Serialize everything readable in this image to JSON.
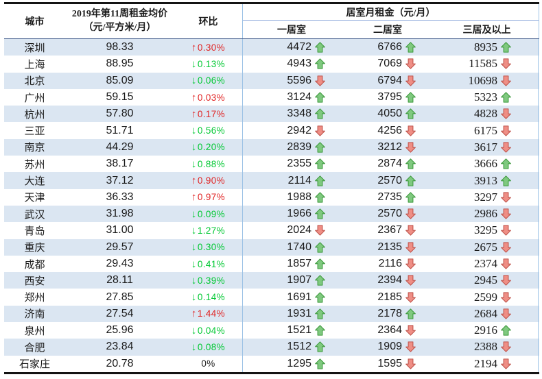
{
  "chart_data": {
    "type": "table",
    "title_note": "weekly city rent averages with week-over-week change and monthly rents by bedroom count",
    "columns": {
      "city": "城市",
      "avg_price_line1": "2019年第11周租金均价",
      "avg_price_line2": "（元/平方米/月）",
      "wow": "环比",
      "room_rent_group": "居室月租金（元/月）",
      "one_bed": "一居室",
      "two_bed": "二居室",
      "three_bed": "三居及以上"
    },
    "rows": [
      {
        "city": "深圳",
        "price": "98.33",
        "wow_pct": "0.30%",
        "wow_dir": "up",
        "one_bed": "4472",
        "one_dir": "up",
        "two_bed": "6766",
        "two_dir": "up",
        "three_bed": "8935",
        "three_dir": "up"
      },
      {
        "city": "上海",
        "price": "88.95",
        "wow_pct": "0.13%",
        "wow_dir": "down",
        "one_bed": "4943",
        "one_dir": "up",
        "two_bed": "7069",
        "two_dir": "down",
        "three_bed": "11585",
        "three_dir": "down"
      },
      {
        "city": "北京",
        "price": "85.09",
        "wow_pct": "0.06%",
        "wow_dir": "down",
        "one_bed": "5596",
        "one_dir": "down",
        "two_bed": "6794",
        "two_dir": "down",
        "three_bed": "10698",
        "three_dir": "down"
      },
      {
        "city": "广州",
        "price": "59.15",
        "wow_pct": "0.03%",
        "wow_dir": "up",
        "one_bed": "3124",
        "one_dir": "up",
        "two_bed": "3795",
        "two_dir": "up",
        "three_bed": "5323",
        "three_dir": "up"
      },
      {
        "city": "杭州",
        "price": "57.80",
        "wow_pct": "0.17%",
        "wow_dir": "up",
        "one_bed": "3348",
        "one_dir": "up",
        "two_bed": "4050",
        "two_dir": "up",
        "three_bed": "4828",
        "three_dir": "down"
      },
      {
        "city": "三亚",
        "price": "51.71",
        "wow_pct": "0.56%",
        "wow_dir": "down",
        "one_bed": "2942",
        "one_dir": "down",
        "two_bed": "4256",
        "two_dir": "down",
        "three_bed": "6175",
        "three_dir": "down"
      },
      {
        "city": "南京",
        "price": "44.29",
        "wow_pct": "0.20%",
        "wow_dir": "down",
        "one_bed": "2839",
        "one_dir": "up",
        "two_bed": "3212",
        "two_dir": "down",
        "three_bed": "3617",
        "three_dir": "down"
      },
      {
        "city": "苏州",
        "price": "38.17",
        "wow_pct": "0.88%",
        "wow_dir": "down",
        "one_bed": "2355",
        "one_dir": "up",
        "two_bed": "2874",
        "two_dir": "up",
        "three_bed": "3666",
        "three_dir": "up"
      },
      {
        "city": "大连",
        "price": "37.12",
        "wow_pct": "0.90%",
        "wow_dir": "up",
        "one_bed": "2114",
        "one_dir": "up",
        "two_bed": "2570",
        "two_dir": "up",
        "three_bed": "3913",
        "three_dir": "up"
      },
      {
        "city": "天津",
        "price": "36.33",
        "wow_pct": "0.97%",
        "wow_dir": "up",
        "one_bed": "1988",
        "one_dir": "up",
        "two_bed": "2735",
        "two_dir": "up",
        "three_bed": "3297",
        "three_dir": "down"
      },
      {
        "city": "武汉",
        "price": "31.98",
        "wow_pct": "0.09%",
        "wow_dir": "down",
        "one_bed": "1966",
        "one_dir": "up",
        "two_bed": "2570",
        "two_dir": "down",
        "three_bed": "2986",
        "three_dir": "down"
      },
      {
        "city": "青岛",
        "price": "31.00",
        "wow_pct": "1.27%",
        "wow_dir": "down",
        "one_bed": "2024",
        "one_dir": "down",
        "two_bed": "2367",
        "two_dir": "down",
        "three_bed": "3295",
        "three_dir": "down"
      },
      {
        "city": "重庆",
        "price": "29.57",
        "wow_pct": "0.30%",
        "wow_dir": "down",
        "one_bed": "1740",
        "one_dir": "up",
        "two_bed": "2135",
        "two_dir": "down",
        "three_bed": "2675",
        "three_dir": "down"
      },
      {
        "city": "成都",
        "price": "29.43",
        "wow_pct": "0.41%",
        "wow_dir": "down",
        "one_bed": "1857",
        "one_dir": "up",
        "two_bed": "2116",
        "two_dir": "down",
        "three_bed": "2374",
        "three_dir": "down"
      },
      {
        "city": "西安",
        "price": "28.11",
        "wow_pct": "0.39%",
        "wow_dir": "down",
        "one_bed": "1907",
        "one_dir": "up",
        "two_bed": "2394",
        "two_dir": "down",
        "three_bed": "2945",
        "three_dir": "down"
      },
      {
        "city": "郑州",
        "price": "27.85",
        "wow_pct": "0.14%",
        "wow_dir": "down",
        "one_bed": "1691",
        "one_dir": "up",
        "two_bed": "2185",
        "two_dir": "down",
        "three_bed": "2599",
        "three_dir": "down"
      },
      {
        "city": "济南",
        "price": "27.54",
        "wow_pct": "1.44%",
        "wow_dir": "up",
        "one_bed": "1931",
        "one_dir": "up",
        "two_bed": "2178",
        "two_dir": "up",
        "three_bed": "2684",
        "three_dir": "down"
      },
      {
        "city": "泉州",
        "price": "25.96",
        "wow_pct": "0.04%",
        "wow_dir": "down",
        "one_bed": "1521",
        "one_dir": "up",
        "two_bed": "2364",
        "two_dir": "down",
        "three_bed": "2916",
        "three_dir": "up"
      },
      {
        "city": "合肥",
        "price": "23.84",
        "wow_pct": "0.08%",
        "wow_dir": "down",
        "one_bed": "1512",
        "one_dir": "up",
        "two_bed": "1909",
        "two_dir": "down",
        "three_bed": "2388",
        "three_dir": "down"
      },
      {
        "city": "石家庄",
        "price": "20.78",
        "wow_pct": "0%",
        "wow_dir": "flat",
        "one_bed": "1295",
        "one_dir": "up",
        "two_bed": "1595",
        "two_dir": "down",
        "three_bed": "2194",
        "three_dir": "down"
      }
    ],
    "icons": {
      "wow_up": "↑",
      "wow_down": "↓",
      "rent_up": "green-block-up-arrow",
      "rent_down": "red-block-down-arrow"
    },
    "colors": {
      "stripe": "#dbe6f2",
      "wow_up_red": "#e02424",
      "wow_down_green": "#00c832",
      "arrow_up_fill": "#7fc97f",
      "arrow_up_stroke": "#3f9b3f",
      "arrow_down_fill": "#ef8e85",
      "arrow_down_stroke": "#bf544c",
      "section_separator": "#9dc3e6",
      "header_underline": "#47618e"
    }
  }
}
